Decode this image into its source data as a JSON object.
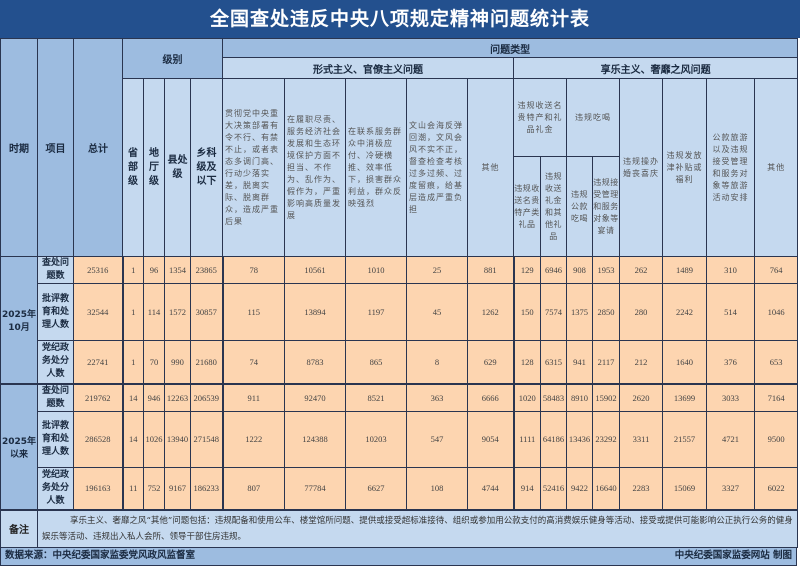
{
  "title": "全国查处违反中央八项规定精神问题统计表",
  "header": {
    "period": "时期",
    "item": "项目",
    "total": "总计",
    "level": "级别",
    "problem_type": "问题类型",
    "formalism": "形式主义、官僚主义问题",
    "hedonism": "享乐主义、奢靡之风问题",
    "levels": [
      "省部级",
      "地厅级",
      "县处级",
      "乡科级及以下"
    ],
    "formalism_cols": [
      "贯彻党中央重大决策部署有令不行、有禁不止，或者表态多调门高、行动少落实差，脱离实际、脱离群众，造成严重后果",
      "在履职尽责、服务经济社会发展和生态环境保护方面不担当、不作为、乱作为、假作为，严重影响高质量发展",
      "在联系服务群众中消极应付、冷硬横推、效率低下，损害群众利益，群众反映强烈",
      "文山会海反弹回潮，文风会风不实不正，督查检查考核过多过频、过度留痕，给基层造成严重负担",
      "其他"
    ],
    "gifts_group": "违规收送名贵特产和礼品礼金",
    "gifts_sub": [
      "违规收送名贵特产类礼品",
      "违规收送礼金和其他礼品"
    ],
    "dining_group": "违规吃喝",
    "dining_sub": [
      "违规公款吃喝",
      "违规接受管理和服务对象等宴请"
    ],
    "hedonism_cols": [
      "违规操办婚丧喜庆",
      "违规发放津补贴或福利",
      "公款旅游以及违规接受管理和服务对象等旅游活动安排",
      "其他"
    ]
  },
  "groups": [
    {
      "period": "2025年10月",
      "rows": [
        {
          "item": "查处问题数",
          "values": [
            "25316",
            "1",
            "96",
            "1354",
            "23865",
            "78",
            "10561",
            "1010",
            "25",
            "881",
            "129",
            "6946",
            "908",
            "1953",
            "262",
            "1489",
            "310",
            "764"
          ]
        },
        {
          "item": "批评教育和处理人数",
          "values": [
            "32544",
            "1",
            "114",
            "1572",
            "30857",
            "115",
            "13894",
            "1197",
            "45",
            "1262",
            "150",
            "7574",
            "1375",
            "2850",
            "280",
            "2242",
            "514",
            "1046"
          ]
        },
        {
          "item": "党纪政务处分人数",
          "values": [
            "22741",
            "1",
            "70",
            "990",
            "21680",
            "74",
            "8783",
            "865",
            "8",
            "629",
            "128",
            "6315",
            "941",
            "2117",
            "212",
            "1640",
            "376",
            "653"
          ]
        }
      ]
    },
    {
      "period": "2025年以来",
      "rows": [
        {
          "item": "查处问题数",
          "values": [
            "219762",
            "14",
            "946",
            "12263",
            "206539",
            "911",
            "92470",
            "8521",
            "363",
            "6666",
            "1020",
            "58483",
            "8910",
            "15902",
            "2620",
            "13699",
            "3033",
            "7164"
          ]
        },
        {
          "item": "批评教育和处理人数",
          "values": [
            "286528",
            "14",
            "1026",
            "13940",
            "271548",
            "1222",
            "124388",
            "10203",
            "547",
            "9054",
            "1111",
            "64186",
            "13436",
            "23292",
            "3311",
            "21557",
            "4721",
            "9500"
          ]
        },
        {
          "item": "党纪政务处分人数",
          "values": [
            "196163",
            "11",
            "752",
            "9167",
            "186233",
            "807",
            "77784",
            "6627",
            "108",
            "4744",
            "914",
            "52416",
            "9422",
            "16640",
            "2283",
            "15069",
            "3327",
            "6022"
          ]
        }
      ]
    }
  ],
  "note_label": "备注",
  "note": "享乐主义、奢靡之风“其他”问题包括：违规配备和使用公车、楼堂馆所问题、提供或接受超标准接待、组织或参加用公款支付的高消费娱乐健身等活动、接受或提供可能影响公正执行公务的健身娱乐等活动、违规出入私人会所、领导干部住房违规。",
  "source": "数据来源：中央纪委国家监委党风政风监督室",
  "credit": "中央纪委国家监委网站 制图"
}
